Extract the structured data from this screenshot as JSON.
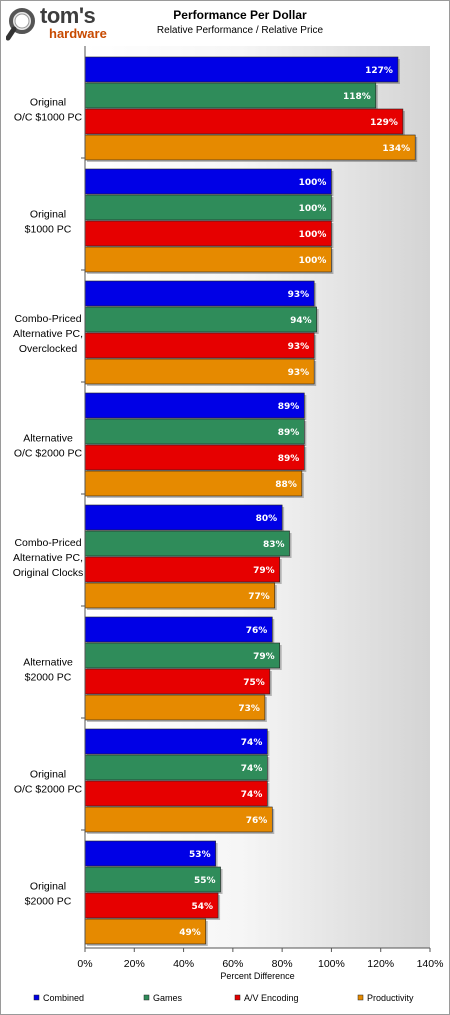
{
  "header": {
    "logo_main": "tom's",
    "logo_sub": "hardware"
  },
  "chart_data": {
    "type": "bar",
    "orientation": "horizontal",
    "title": "Performance Per Dollar",
    "subtitle": "Relative Performance / Relative Price",
    "xlabel": "Percent Difference",
    "xlim": [
      0,
      140
    ],
    "xticks": [
      "0%",
      "20%",
      "40%",
      "60%",
      "80%",
      "100%",
      "120%",
      "140%"
    ],
    "grid": false,
    "legend_position": "bottom",
    "categories": [
      [
        "Original",
        "O/C $1000 PC"
      ],
      [
        "Original",
        "$1000 PC"
      ],
      [
        "Combo-Priced",
        "Alternative PC,",
        "Overclocked"
      ],
      [
        "Alternative",
        "O/C $2000 PC"
      ],
      [
        "Combo-Priced",
        "Alternative PC,",
        "Original Clocks"
      ],
      [
        "Alternative",
        "$2000 PC"
      ],
      [
        "Original",
        "O/C $2000 PC"
      ],
      [
        "Original",
        "$2000 PC"
      ]
    ],
    "series": [
      {
        "name": "Combined",
        "color": "#0000e6",
        "values": [
          127,
          100,
          93,
          89,
          80,
          76,
          74,
          53
        ],
        "labels": [
          "127%",
          "100%",
          "93%",
          "89%",
          "80%",
          "76%",
          "74%",
          "53%"
        ]
      },
      {
        "name": "Games",
        "color": "#2f8c5a",
        "values": [
          118,
          100,
          94,
          89,
          83,
          79,
          74,
          55
        ],
        "labels": [
          "118%",
          "100%",
          "94%",
          "89%",
          "83%",
          "79%",
          "74%",
          "55%"
        ]
      },
      {
        "name": "A/V Encoding",
        "color": "#e60000",
        "values": [
          129,
          100,
          93,
          89,
          79,
          75,
          74,
          54
        ],
        "labels": [
          "129%",
          "100%",
          "93%",
          "89%",
          "79%",
          "75%",
          "74%",
          "54%"
        ]
      },
      {
        "name": "Productivity",
        "color": "#e68a00",
        "values": [
          134,
          100,
          93,
          88,
          77,
          73,
          76,
          49
        ],
        "labels": [
          "134%",
          "100%",
          "93%",
          "88%",
          "77%",
          "73%",
          "76%",
          "49%"
        ]
      }
    ]
  }
}
